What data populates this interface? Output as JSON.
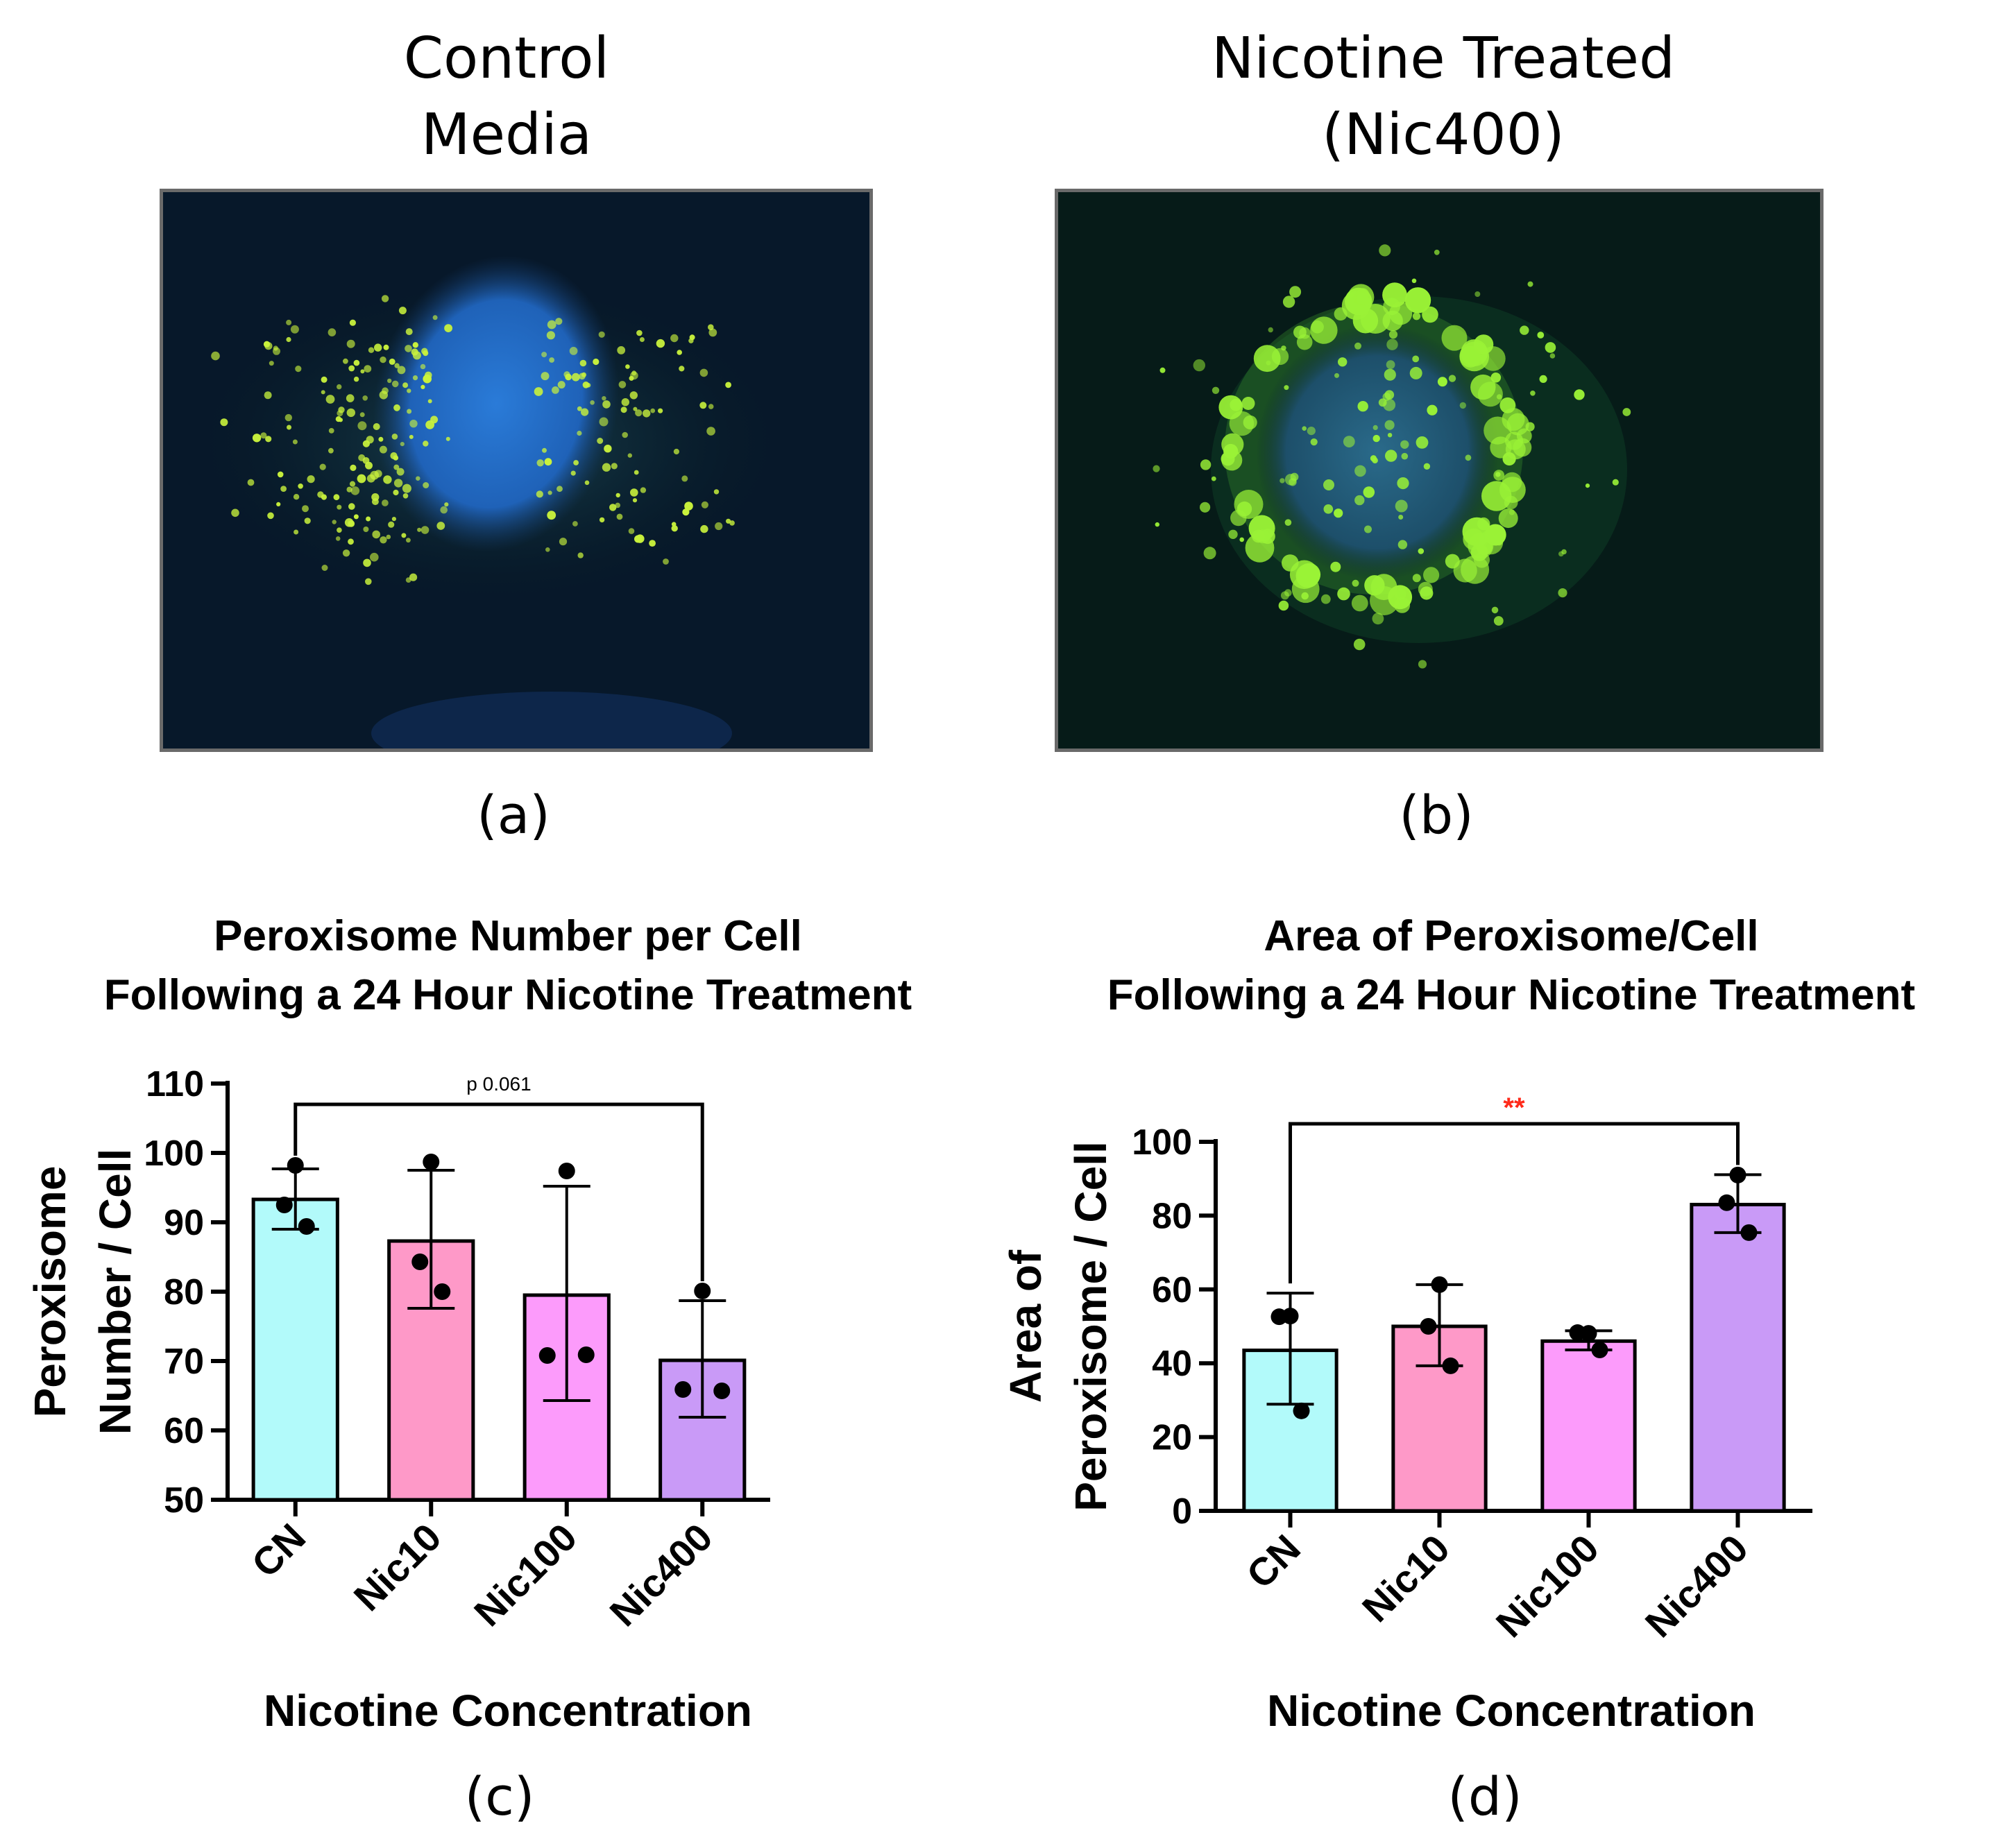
{
  "figure": {
    "panel_a": {
      "title_line1": "Control",
      "title_line2": "Media",
      "label": "(a)"
    },
    "panel_b": {
      "title_line1": "Nicotine Treated",
      "title_line2": "(Nic400)",
      "label": "(b)"
    },
    "panel_c": {
      "label": "(c)"
    },
    "panel_d": {
      "label": "(d)"
    }
  },
  "colors": {
    "CN": "#b2fafa",
    "Nic10": "#fe99c8",
    "Nic100": "#fc9bfb",
    "Nic400": "#c99af7",
    "significance": "#ff2a1a"
  },
  "chart_data": [
    {
      "type": "bar",
      "title_line1": "Peroxisome Number per Cell",
      "title_line2": "Following a 24 Hour Nicotine Treatment",
      "xlabel": "Nicotine Concentration",
      "ylabel_line1": "Peroxisome",
      "ylabel_line2": "Number / Cell",
      "categories": [
        "CN",
        "Nic10",
        "Nic100",
        "Nic400"
      ],
      "values": [
        93.3,
        87.3,
        79.5,
        70.1
      ],
      "error": [
        [
          89.0,
          97.7
        ],
        [
          77.6,
          97.5
        ],
        [
          64.3,
          95.2
        ],
        [
          61.9,
          78.7
        ]
      ],
      "points": [
        [
          98.2,
          92.5,
          89.4
        ],
        [
          98.7,
          84.3,
          80.0
        ],
        [
          97.4,
          70.8,
          70.9
        ],
        [
          80.1,
          65.9,
          65.7
        ]
      ],
      "ylim": [
        50,
        110
      ],
      "yticks": [
        50,
        60,
        70,
        80,
        90,
        100,
        110
      ],
      "annotation": {
        "text": "p 0.061",
        "from": "CN",
        "to": "Nic400"
      }
    },
    {
      "type": "bar",
      "title_line1": "Area of Peroxisome/Cell",
      "title_line2": "Following a 24 Hour Nicotine Treatment",
      "xlabel": "Nicotine Concentration",
      "ylabel_line1": "Area of",
      "ylabel_line2": "Peroxisome / Cell",
      "categories": [
        "CN",
        "Nic10",
        "Nic100",
        "Nic400"
      ],
      "values": [
        43.5,
        50.0,
        46.0,
        83.0
      ],
      "error": [
        [
          28.9,
          59.0
        ],
        [
          39.3,
          61.3
        ],
        [
          43.6,
          48.8
        ],
        [
          75.4,
          91.1
        ]
      ],
      "points": [
        [
          52.8,
          52.6,
          27.1
        ],
        [
          61.3,
          50.0,
          39.3
        ],
        [
          48.1,
          48.3,
          43.6
        ],
        [
          91.0,
          83.5,
          75.4
        ]
      ],
      "ylim": [
        0,
        100
      ],
      "yticks": [
        0,
        20,
        40,
        60,
        80,
        100
      ],
      "annotation": {
        "text": "**",
        "from": "CN",
        "to": "Nic400"
      }
    }
  ]
}
